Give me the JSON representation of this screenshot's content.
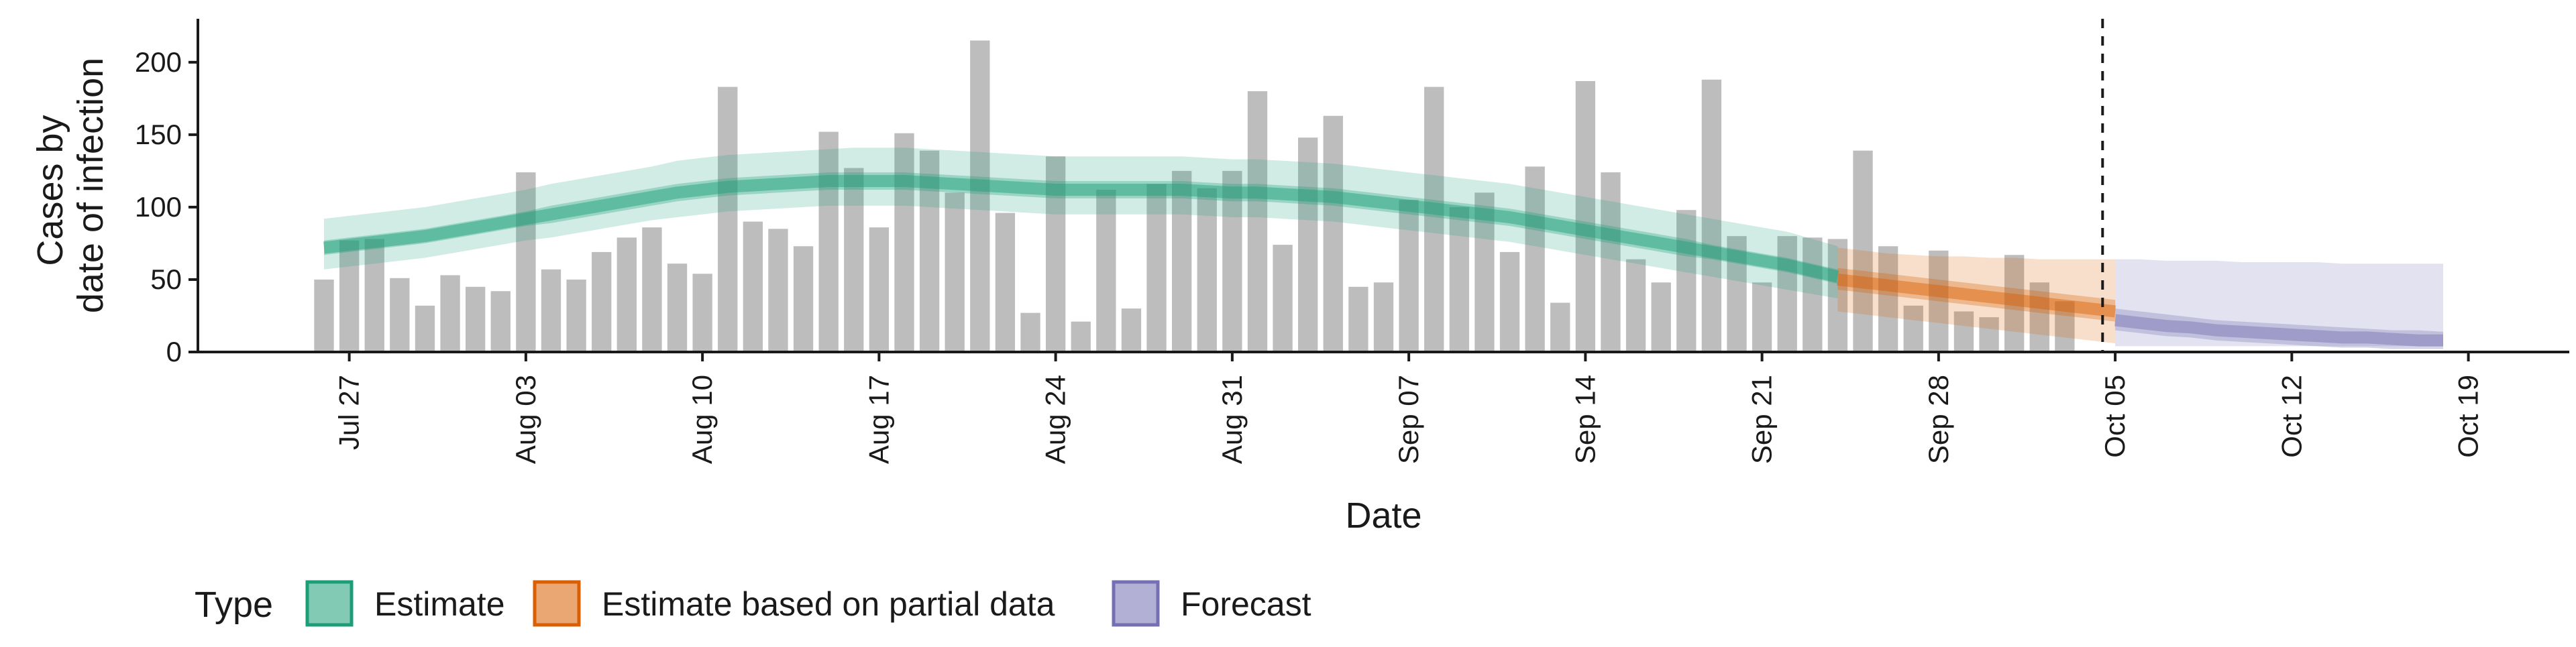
{
  "chart_data": {
    "type": "bar",
    "xlabel": "Date",
    "ylabel": [
      "Cases by",
      "date of infection"
    ],
    "ylim": [
      0,
      230
    ],
    "y_ticks": [
      0,
      50,
      100,
      150,
      200
    ],
    "x_range": [
      "2020-07-21",
      "2020-10-23"
    ],
    "x_ticks": [
      {
        "date": "2020-07-27",
        "label": "Jul 27"
      },
      {
        "date": "2020-08-03",
        "label": "Aug 03"
      },
      {
        "date": "2020-08-10",
        "label": "Aug 10"
      },
      {
        "date": "2020-08-17",
        "label": "Aug 17"
      },
      {
        "date": "2020-08-24",
        "label": "Aug 24"
      },
      {
        "date": "2020-08-31",
        "label": "Aug 31"
      },
      {
        "date": "2020-09-07",
        "label": "Sep 07"
      },
      {
        "date": "2020-09-14",
        "label": "Sep 14"
      },
      {
        "date": "2020-09-21",
        "label": "Sep 21"
      },
      {
        "date": "2020-09-28",
        "label": "Sep 28"
      },
      {
        "date": "2020-10-05",
        "label": "Oct 05"
      },
      {
        "date": "2020-10-12",
        "label": "Oct 12"
      },
      {
        "date": "2020-10-19",
        "label": "Oct 19"
      }
    ],
    "vline_date": "2020-10-04",
    "grid": false,
    "observed": {
      "color": "#bdbdbd",
      "start_date": "2020-07-26",
      "values": [
        50,
        77,
        78,
        51,
        32,
        53,
        45,
        42,
        124,
        57,
        50,
        69,
        79,
        86,
        61,
        54,
        183,
        90,
        85,
        73,
        152,
        127,
        86,
        151,
        139,
        110,
        215,
        96,
        27,
        135,
        21,
        112,
        30,
        116,
        125,
        113,
        125,
        180,
        74,
        148,
        163,
        45,
        48,
        105,
        183,
        100,
        110,
        69,
        128,
        34,
        187,
        124,
        64,
        48,
        98,
        188,
        80,
        48,
        80,
        79,
        78,
        139,
        73,
        32,
        70,
        28,
        24,
        67,
        48,
        35
      ]
    },
    "series": [
      {
        "name": "Estimate",
        "color": "#1b9e77",
        "start_date": "2020-07-26",
        "median": [
          72,
          74,
          76,
          78,
          80,
          83,
          86,
          89,
          92,
          95,
          98,
          101,
          104,
          107,
          110,
          112,
          114,
          115,
          116,
          117,
          118,
          118,
          118,
          118,
          117,
          116,
          115,
          114,
          113,
          112,
          112,
          112,
          112,
          112,
          112,
          111,
          110,
          110,
          109,
          108,
          107,
          105,
          103,
          101,
          99,
          97,
          95,
          93,
          90,
          87,
          84,
          81,
          78,
          75,
          72,
          69,
          66,
          63,
          60,
          56,
          52
        ],
        "inner": [
          [
            67,
            77
          ],
          [
            69,
            79
          ],
          [
            71,
            81
          ],
          [
            73,
            83
          ],
          [
            75,
            85
          ],
          [
            78,
            88
          ],
          [
            81,
            91
          ],
          [
            84,
            94
          ],
          [
            87,
            97
          ],
          [
            89,
            101
          ],
          [
            92,
            104
          ],
          [
            95,
            107
          ],
          [
            98,
            110
          ],
          [
            101,
            113
          ],
          [
            104,
            116
          ],
          [
            106,
            118
          ],
          [
            108,
            120
          ],
          [
            109,
            121
          ],
          [
            110,
            122
          ],
          [
            111,
            123
          ],
          [
            112,
            124
          ],
          [
            112,
            124
          ],
          [
            112,
            124
          ],
          [
            112,
            124
          ],
          [
            111,
            123
          ],
          [
            110,
            122
          ],
          [
            109,
            121
          ],
          [
            108,
            120
          ],
          [
            107,
            119
          ],
          [
            106,
            118
          ],
          [
            106,
            118
          ],
          [
            106,
            118
          ],
          [
            106,
            118
          ],
          [
            106,
            118
          ],
          [
            106,
            118
          ],
          [
            105,
            117
          ],
          [
            104,
            116
          ],
          [
            104,
            116
          ],
          [
            103,
            115
          ],
          [
            102,
            114
          ],
          [
            101,
            113
          ],
          [
            99,
            111
          ],
          [
            97,
            109
          ],
          [
            95,
            107
          ],
          [
            93,
            105
          ],
          [
            91,
            103
          ],
          [
            89,
            101
          ],
          [
            87,
            99
          ],
          [
            84,
            96
          ],
          [
            81,
            93
          ],
          [
            78,
            90
          ],
          [
            75,
            87
          ],
          [
            72,
            84
          ],
          [
            69,
            81
          ],
          [
            66,
            78
          ],
          [
            64,
            74
          ],
          [
            61,
            71
          ],
          [
            58,
            68
          ],
          [
            55,
            65
          ],
          [
            51,
            61
          ],
          [
            47,
            57
          ]
        ],
        "outer": [
          [
            57,
            92
          ],
          [
            59,
            94
          ],
          [
            61,
            96
          ],
          [
            63,
            98
          ],
          [
            65,
            100
          ],
          [
            68,
            103
          ],
          [
            71,
            106
          ],
          [
            74,
            109
          ],
          [
            77,
            112
          ],
          [
            79,
            116
          ],
          [
            82,
            119
          ],
          [
            85,
            122
          ],
          [
            88,
            125
          ],
          [
            91,
            128
          ],
          [
            93,
            132
          ],
          [
            95,
            134
          ],
          [
            97,
            136
          ],
          [
            98,
            137
          ],
          [
            99,
            138
          ],
          [
            100,
            139
          ],
          [
            101,
            140
          ],
          [
            101,
            141
          ],
          [
            101,
            141
          ],
          [
            101,
            141
          ],
          [
            100,
            140
          ],
          [
            99,
            139
          ],
          [
            98,
            138
          ],
          [
            97,
            137
          ],
          [
            96,
            136
          ],
          [
            95,
            135
          ],
          [
            95,
            135
          ],
          [
            95,
            135
          ],
          [
            95,
            135
          ],
          [
            95,
            135
          ],
          [
            95,
            135
          ],
          [
            94,
            134
          ],
          [
            93,
            133
          ],
          [
            93,
            133
          ],
          [
            92,
            132
          ],
          [
            91,
            131
          ],
          [
            90,
            130
          ],
          [
            88,
            128
          ],
          [
            86,
            126
          ],
          [
            84,
            124
          ],
          [
            82,
            122
          ],
          [
            80,
            120
          ],
          [
            78,
            118
          ],
          [
            76,
            116
          ],
          [
            73,
            113
          ],
          [
            70,
            110
          ],
          [
            67,
            107
          ],
          [
            64,
            104
          ],
          [
            61,
            101
          ],
          [
            58,
            98
          ],
          [
            55,
            95
          ],
          [
            52,
            92
          ],
          [
            49,
            89
          ],
          [
            46,
            86
          ],
          [
            43,
            83
          ],
          [
            40,
            78
          ],
          [
            37,
            73
          ]
        ]
      },
      {
        "name": "Estimate based on partial data",
        "color": "#d95f02",
        "start_date": "2020-09-24",
        "median": [
          50,
          48,
          46,
          44,
          42,
          40,
          38,
          36,
          34,
          32,
          30,
          28
        ],
        "inner": [
          [
            43,
            58
          ],
          [
            41,
            56
          ],
          [
            39,
            54
          ],
          [
            37,
            52
          ],
          [
            35,
            50
          ],
          [
            33,
            48
          ],
          [
            31,
            46
          ],
          [
            29,
            44
          ],
          [
            27,
            42
          ],
          [
            25,
            40
          ],
          [
            23,
            38
          ],
          [
            21,
            36
          ]
        ],
        "outer": [
          [
            28,
            72
          ],
          [
            26,
            70
          ],
          [
            24,
            68
          ],
          [
            22,
            67
          ],
          [
            20,
            66
          ],
          [
            18,
            66
          ],
          [
            16,
            65
          ],
          [
            14,
            65
          ],
          [
            12,
            64
          ],
          [
            10,
            64
          ],
          [
            8,
            64
          ],
          [
            6,
            64
          ]
        ]
      },
      {
        "name": "Forecast",
        "color": "#7570b3",
        "start_date": "2020-10-05",
        "median": [
          22,
          20,
          18,
          17,
          15,
          14,
          13,
          12,
          11,
          10,
          10,
          9,
          8,
          8
        ],
        "inner": [
          [
            15,
            30
          ],
          [
            13,
            28
          ],
          [
            11,
            26
          ],
          [
            10,
            24
          ],
          [
            8,
            22
          ],
          [
            7,
            21
          ],
          [
            6,
            20
          ],
          [
            5,
            19
          ],
          [
            4,
            18
          ],
          [
            3,
            17
          ],
          [
            3,
            16
          ],
          [
            2,
            15
          ],
          [
            2,
            15
          ],
          [
            2,
            14
          ]
        ],
        "outer": [
          [
            4,
            64
          ],
          [
            4,
            64
          ],
          [
            4,
            63
          ],
          [
            4,
            63
          ],
          [
            4,
            63
          ],
          [
            4,
            62
          ],
          [
            4,
            62
          ],
          [
            4,
            62
          ],
          [
            4,
            62
          ],
          [
            4,
            61
          ],
          [
            4,
            61
          ],
          [
            4,
            61
          ],
          [
            4,
            61
          ],
          [
            4,
            61
          ]
        ]
      }
    ],
    "legend": {
      "title": "Type",
      "placement": "bottom",
      "items": [
        {
          "label": "Estimate",
          "color": "#1b9e77"
        },
        {
          "label": "Estimate based on partial data",
          "color": "#d95f02"
        },
        {
          "label": "Forecast",
          "color": "#7570b3"
        }
      ]
    }
  }
}
